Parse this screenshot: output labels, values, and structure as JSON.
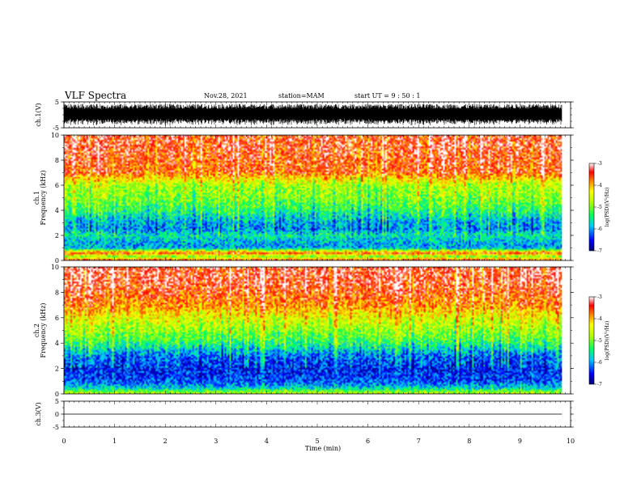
{
  "header": {
    "title": "VLF Spectra",
    "date": "Nov.28, 2021",
    "station": "station=MAM",
    "start": "start  UT =   9 : 50 : 1"
  },
  "chart_data": [
    {
      "type": "line",
      "name": "ch1-waveform",
      "ylabel": "ch.1(V)",
      "ylim": [
        -5,
        5
      ],
      "yticks": [
        "5",
        "-5"
      ],
      "description_of_values": "dense waveform amplitude",
      "amplitude": 4.2,
      "x_range": [
        0,
        9.83
      ]
    },
    {
      "type": "heatmap",
      "name": "ch1-spectrogram",
      "ylabel": "ch.1\nFrequency  (kHz)",
      "ylabel_lines": [
        "ch.1",
        "Frequency  (kHz)"
      ],
      "ylim": [
        0,
        10
      ],
      "yticks": [
        "0",
        "2",
        "4",
        "6",
        "8",
        "10"
      ],
      "x_range": [
        0,
        9.83
      ],
      "colorbar": {
        "label": "log(PSD)(V²/Hz)",
        "ticks": [
          "-3",
          "-4",
          "-5",
          "-6",
          "-7"
        ],
        "range": [
          -7,
          -3
        ]
      },
      "profile_khz": [
        0,
        0.3,
        0.6,
        1.0,
        1.5,
        2.0,
        2.5,
        3.0,
        4.0,
        5.0,
        6.0,
        6.5,
        7.0,
        8.0,
        9.0,
        10.0
      ],
      "profile_level": [
        -3.4,
        -5.0,
        -3.6,
        -6.0,
        -5.9,
        -5.6,
        -6.1,
        -6.0,
        -5.4,
        -5.0,
        -4.8,
        -4.3,
        -3.7,
        -3.6,
        -3.5,
        -3.5
      ]
    },
    {
      "type": "heatmap",
      "name": "ch2-spectrogram",
      "ylabel": "ch.2\nFrequency  (kHz)",
      "ylabel_lines": [
        "ch.2",
        "Frequency  (kHz)"
      ],
      "ylim": [
        0,
        10
      ],
      "yticks": [
        "0",
        "2",
        "4",
        "6",
        "8",
        "10"
      ],
      "x_range": [
        0,
        9.83
      ],
      "colorbar": {
        "label": "log(PSD)(V²/Hz)",
        "ticks": [
          "-3",
          "-4",
          "-5",
          "-6",
          "-7"
        ],
        "range": [
          -7,
          -3
        ]
      },
      "profile_khz": [
        0,
        0.5,
        1.0,
        1.5,
        2.0,
        3.0,
        4.0,
        5.0,
        6.0,
        7.0,
        8.0,
        9.0,
        10.0
      ],
      "profile_level": [
        -4.6,
        -5.8,
        -6.3,
        -6.4,
        -6.5,
        -6.2,
        -5.4,
        -4.9,
        -4.5,
        -3.9,
        -3.6,
        -3.4,
        -3.4
      ]
    },
    {
      "type": "line",
      "name": "ch3-waveform",
      "ylabel": "ch.3(V)",
      "ylim": [
        -5,
        5
      ],
      "yticks": [
        "5",
        "0",
        "-5"
      ],
      "x": [
        0,
        9.83
      ],
      "y": [
        0,
        0
      ]
    }
  ],
  "xaxis": {
    "label": "Time  (min)",
    "ticks": [
      "0",
      "1",
      "2",
      "3",
      "4",
      "5",
      "6",
      "7",
      "8",
      "9",
      "10"
    ],
    "range": [
      0,
      10
    ]
  }
}
